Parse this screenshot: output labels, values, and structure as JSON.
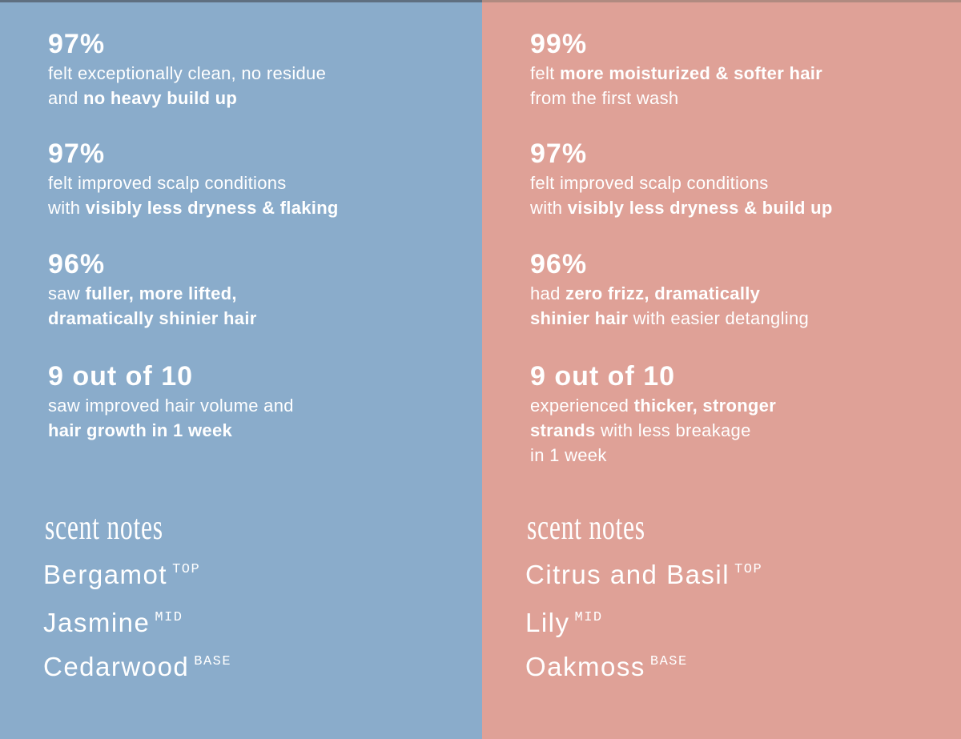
{
  "left": {
    "stats": [
      {
        "figure": "97%",
        "lines": [
          [
            {
              "text": "felt exceptionally clean, no residue",
              "bold": false
            }
          ],
          [
            {
              "text": "and ",
              "bold": false
            },
            {
              "text": "no heavy build up",
              "bold": true
            }
          ]
        ]
      },
      {
        "figure": "97%",
        "lines": [
          [
            {
              "text": "felt improved scalp conditions",
              "bold": false
            }
          ],
          [
            {
              "text": "with ",
              "bold": false
            },
            {
              "text": "visibly less dryness & flaking",
              "bold": true
            }
          ]
        ]
      },
      {
        "figure": "96%",
        "lines": [
          [
            {
              "text": "saw ",
              "bold": false
            },
            {
              "text": "fuller, more lifted,",
              "bold": true
            }
          ],
          [
            {
              "text": "dramatically shinier hair",
              "bold": true
            }
          ]
        ]
      },
      {
        "figure": "9 out of 10",
        "lines": [
          [
            {
              "text": "saw improved hair volume and",
              "bold": false
            }
          ],
          [
            {
              "text": "hair growth in 1 week",
              "bold": true
            }
          ]
        ]
      }
    ],
    "scent_title": "scent notes",
    "notes": [
      {
        "name": "Bergamot",
        "level": "TOP"
      },
      {
        "name": "Jasmine",
        "level": "MID"
      },
      {
        "name": "Cedarwood",
        "level": "BASE"
      }
    ]
  },
  "right": {
    "stats": [
      {
        "figure": "99%",
        "lines": [
          [
            {
              "text": "felt ",
              "bold": false
            },
            {
              "text": "more moisturized & softer hair",
              "bold": true
            }
          ],
          [
            {
              "text": "from the first wash",
              "bold": false
            }
          ]
        ]
      },
      {
        "figure": "97%",
        "lines": [
          [
            {
              "text": "felt improved scalp conditions",
              "bold": false
            }
          ],
          [
            {
              "text": "with ",
              "bold": false
            },
            {
              "text": "visibly less dryness & build up",
              "bold": true
            }
          ]
        ]
      },
      {
        "figure": "96%",
        "lines": [
          [
            {
              "text": "had ",
              "bold": false
            },
            {
              "text": "zero frizz, dramatically",
              "bold": true
            }
          ],
          [
            {
              "text": "shinier hair",
              "bold": true
            },
            {
              "text": " with easier detangling",
              "bold": false
            }
          ]
        ]
      },
      {
        "figure": "9 out of 10",
        "lines": [
          [
            {
              "text": "experienced ",
              "bold": false
            },
            {
              "text": "thicker, stronger",
              "bold": true
            }
          ],
          [
            {
              "text": "strands",
              "bold": true
            },
            {
              "text": " with less breakage",
              "bold": false
            }
          ],
          [
            {
              "text": "in 1 week",
              "bold": false
            }
          ]
        ]
      }
    ],
    "scent_title": "scent notes",
    "notes": [
      {
        "name": "Citrus and Basil",
        "level": "TOP"
      },
      {
        "name": "Lily",
        "level": "MID"
      },
      {
        "name": "Oakmoss",
        "level": "BASE"
      }
    ]
  }
}
